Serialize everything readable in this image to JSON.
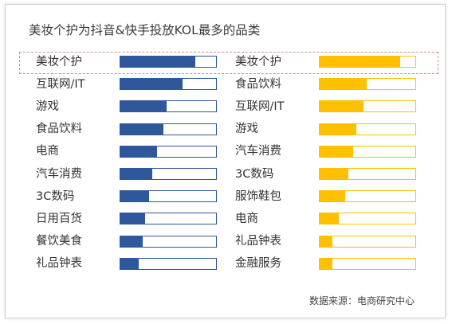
{
  "title": "美妆个护为抖音&快手投放KOL最多的品类",
  "source": "数据来源：电商研究中心",
  "colors": {
    "left": "#2e579c",
    "right": "#ffc000",
    "highlight": "#e08a8a"
  },
  "chart_data": [
    {
      "type": "bar",
      "orientation": "horizontal",
      "categories": [
        "美妆个护",
        "互联网/IT",
        "游戏",
        "食品饮料",
        "电商",
        "汽车消费",
        "3C数码",
        "日用百货",
        "餐饮美食",
        "礼品钟表"
      ],
      "values": [
        78,
        65,
        48,
        45,
        38,
        33,
        30,
        26,
        23,
        19
      ],
      "xlim": [
        0,
        100
      ]
    },
    {
      "type": "bar",
      "orientation": "horizontal",
      "categories": [
        "美妆个护",
        "食品饮料",
        "互联网/IT",
        "游戏",
        "汽车消费",
        "3C数码",
        "服饰鞋包",
        "电商",
        "礼品钟表",
        "金融服务"
      ],
      "values": [
        84,
        49,
        46,
        38,
        35,
        30,
        27,
        20,
        13,
        13
      ],
      "xlim": [
        0,
        100
      ]
    }
  ]
}
